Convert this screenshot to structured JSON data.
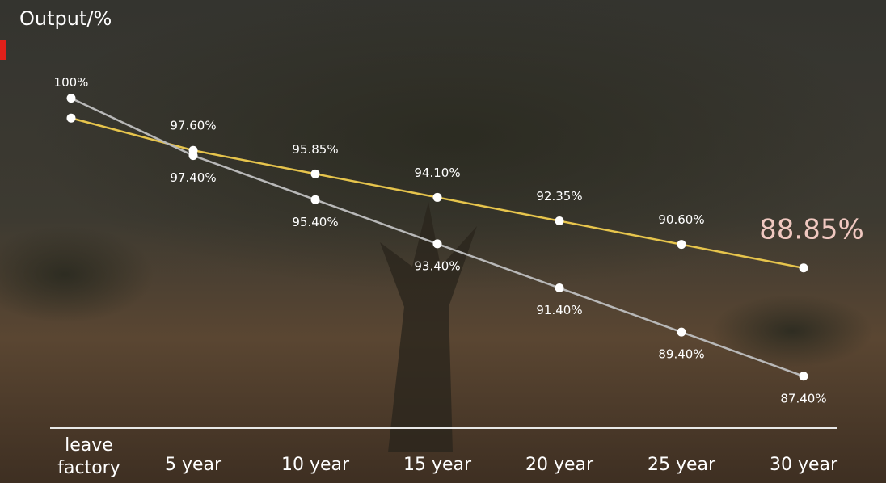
{
  "chart_data": {
    "type": "line",
    "y_label": "Output/%",
    "categories": [
      "leave factory",
      "5 year",
      "10 year",
      "15 year",
      "20 year",
      "25 year",
      "30 year"
    ],
    "series": [
      {
        "color": "#e6c44c",
        "axis": "y2",
        "values": [
          100,
          97.6,
          95.85,
          94.1,
          92.35,
          90.6,
          88.85
        ],
        "value_labels": [
          "100%",
          "97.60%",
          "95.85%",
          "94.10%",
          "92.35%",
          "90.60%",
          "88.85%"
        ]
      },
      {
        "color": "#b8b8b8",
        "values": [
          100,
          97.4,
          95.4,
          93.4,
          91.4,
          89.4,
          87.4
        ],
        "value_labels": [
          null,
          "97.40%",
          "95.40%",
          "93.40%",
          "91.40%",
          "89.40%",
          "87.40%"
        ]
      }
    ],
    "ylim": [
      86,
      100.5
    ],
    "y2lim": [
      78.5,
      102.3
    ]
  }
}
